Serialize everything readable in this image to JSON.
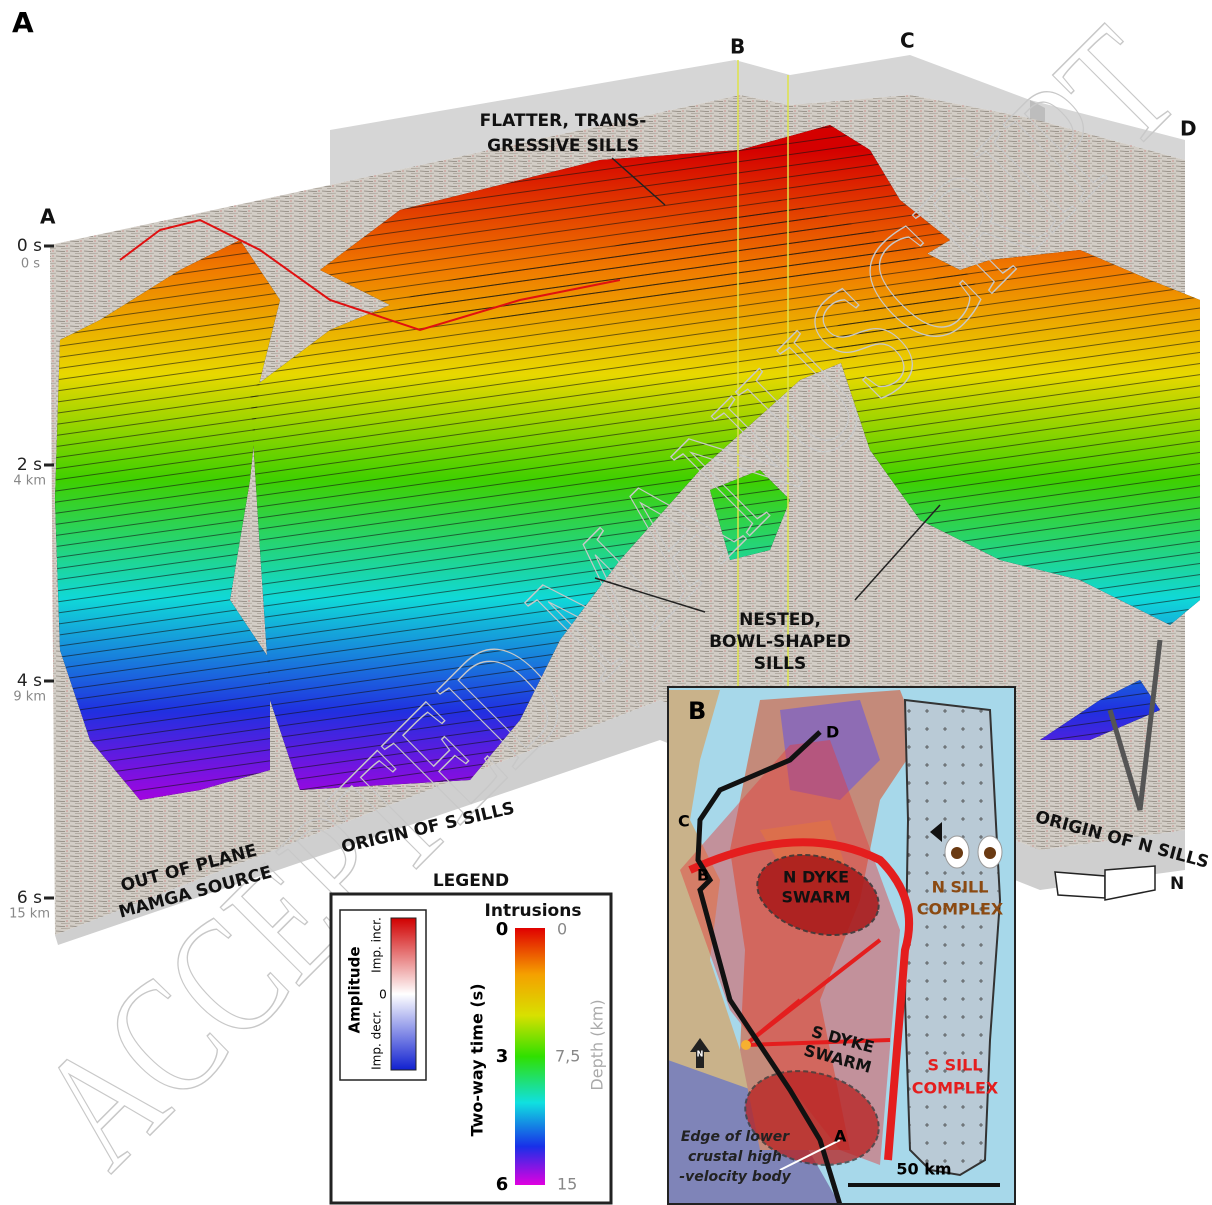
{
  "panel_a": {
    "label": "A",
    "corners": [
      "A",
      "B",
      "C",
      "D"
    ],
    "time_axis": [
      {
        "time": "0 s",
        "depth": "0 s"
      },
      {
        "time": "2 s",
        "depth": "4 km"
      },
      {
        "time": "4 s",
        "depth": "9 km"
      },
      {
        "time": "6 s",
        "depth": "15 km"
      }
    ],
    "annotations": {
      "flatter": [
        "FLATTER, TRANS-",
        "GRESSIVE SILLS"
      ],
      "nested": [
        "NESTED,",
        "BOWL-SHAPED",
        "SILLS"
      ],
      "origin_s": "ORIGIN OF S SILLS",
      "out_of_plane": [
        "OUT OF PLANE",
        "MAMGA SOURCE"
      ],
      "origin_n": "ORIGIN OF N SILLS",
      "north": "N"
    }
  },
  "legend": {
    "title": "LEGEND",
    "amplitude": {
      "title": "Amplitude",
      "top": "Imp. incr.",
      "bottom": "Imp. decr.",
      "zero": "0"
    },
    "intrusions": {
      "title": "Intrusions",
      "time_ticks": [
        "0",
        "3",
        "6"
      ],
      "depth_ticks": [
        "0",
        "7,5",
        "15"
      ],
      "time_label": "Two-way time (s)",
      "depth_label": "Depth (km)"
    }
  },
  "panel_b": {
    "label": "B",
    "points": [
      "D",
      "C",
      "B",
      "A"
    ],
    "n_dyke": [
      "N DYKE",
      "SWARM"
    ],
    "n_sill": [
      "N SILL",
      "COMPLEX"
    ],
    "s_dyke": [
      "S DYKE",
      "SWARM"
    ],
    "s_sill": [
      "S SILL",
      "COMPLEX"
    ],
    "edge": [
      "Edge of lower",
      "crustal high",
      "-velocity body"
    ],
    "scale": "50 km",
    "north": "N"
  },
  "watermark": "ACCEPTED MANUSCRIPT"
}
